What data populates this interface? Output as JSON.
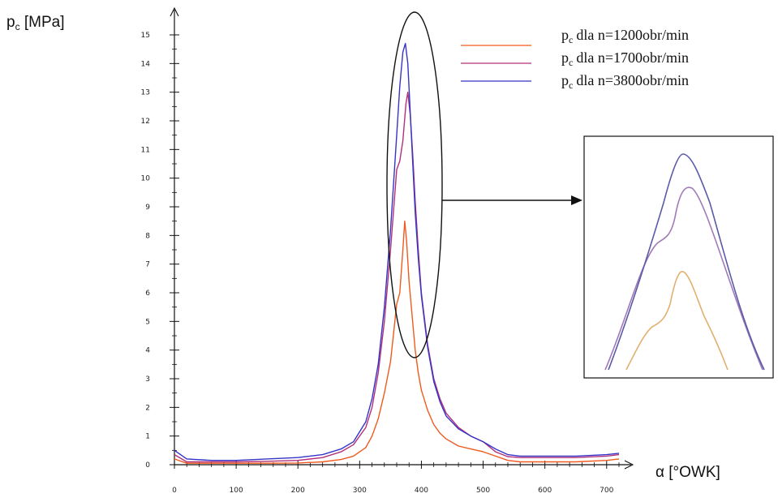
{
  "chart_data": {
    "type": "line",
    "ylabel": {
      "base": "p",
      "sub": "c",
      "rest": " [MPa]"
    },
    "xlabel": "α [°OWK]",
    "xlim": [
      0,
      720
    ],
    "ylim": [
      0,
      15
    ],
    "x_ticks": [
      "0",
      "100",
      "200",
      "300",
      "400",
      "500",
      "600",
      "700"
    ],
    "y_ticks": [
      "0",
      "1",
      "2",
      "3",
      "4",
      "5",
      "6",
      "7",
      "8",
      "9",
      "10",
      "11",
      "12",
      "13",
      "14",
      "15"
    ],
    "grid": false,
    "legend_position": "top-right",
    "series": [
      {
        "name": "dla n=1200obr/min",
        "name_base": "p",
        "name_sub": "c",
        "color": "#f05a1e",
        "x": [
          0,
          20,
          60,
          100,
          150,
          200,
          240,
          270,
          290,
          310,
          320,
          330,
          340,
          350,
          355,
          360,
          365,
          370,
          373,
          376,
          380,
          385,
          390,
          395,
          400,
          410,
          420,
          430,
          440,
          460,
          480,
          500,
          520,
          540,
          560,
          600,
          650,
          700,
          720
        ],
        "y": [
          0.2,
          0.05,
          0.05,
          0.05,
          0.05,
          0.06,
          0.1,
          0.18,
          0.3,
          0.6,
          1.0,
          1.6,
          2.5,
          3.6,
          4.6,
          5.6,
          6.0,
          7.5,
          8.5,
          7.8,
          6.4,
          5.2,
          4.0,
          3.2,
          2.6,
          1.9,
          1.4,
          1.1,
          0.9,
          0.65,
          0.55,
          0.45,
          0.3,
          0.15,
          0.1,
          0.1,
          0.1,
          0.15,
          0.2
        ]
      },
      {
        "name": "dla n=1700obr/min",
        "name_base": "p",
        "name_sub": "c",
        "color": "#b0307a",
        "x": [
          0,
          20,
          60,
          100,
          150,
          200,
          240,
          270,
          290,
          310,
          320,
          330,
          340,
          350,
          360,
          365,
          370,
          375,
          378,
          382,
          386,
          390,
          395,
          400,
          410,
          420,
          430,
          440,
          460,
          480,
          500,
          520,
          540,
          560,
          600,
          650,
          700,
          720
        ],
        "y": [
          0.35,
          0.1,
          0.1,
          0.1,
          0.12,
          0.15,
          0.25,
          0.45,
          0.7,
          1.3,
          2.0,
          3.2,
          5.0,
          7.5,
          10.3,
          10.6,
          11.3,
          12.6,
          13.0,
          12.2,
          10.8,
          9.2,
          7.5,
          6.0,
          4.2,
          3.0,
          2.3,
          1.8,
          1.3,
          1.0,
          0.8,
          0.45,
          0.28,
          0.25,
          0.25,
          0.25,
          0.3,
          0.35
        ]
      },
      {
        "name": "dla n=3800obr/min",
        "name_base": "p",
        "name_sub": "c",
        "color": "#3434c8",
        "x": [
          0,
          20,
          60,
          100,
          150,
          200,
          240,
          270,
          290,
          310,
          320,
          330,
          340,
          350,
          360,
          365,
          370,
          374,
          378,
          382,
          386,
          390,
          395,
          400,
          410,
          420,
          430,
          440,
          460,
          480,
          500,
          520,
          540,
          560,
          600,
          650,
          700,
          720
        ],
        "y": [
          0.5,
          0.2,
          0.15,
          0.15,
          0.2,
          0.25,
          0.35,
          0.55,
          0.8,
          1.5,
          2.3,
          3.5,
          5.5,
          8.2,
          11.5,
          13.2,
          14.4,
          14.7,
          14.0,
          12.3,
          10.5,
          8.8,
          7.2,
          5.9,
          4.1,
          2.9,
          2.2,
          1.7,
          1.25,
          1.0,
          0.8,
          0.55,
          0.35,
          0.3,
          0.3,
          0.3,
          0.35,
          0.4
        ]
      }
    ]
  }
}
